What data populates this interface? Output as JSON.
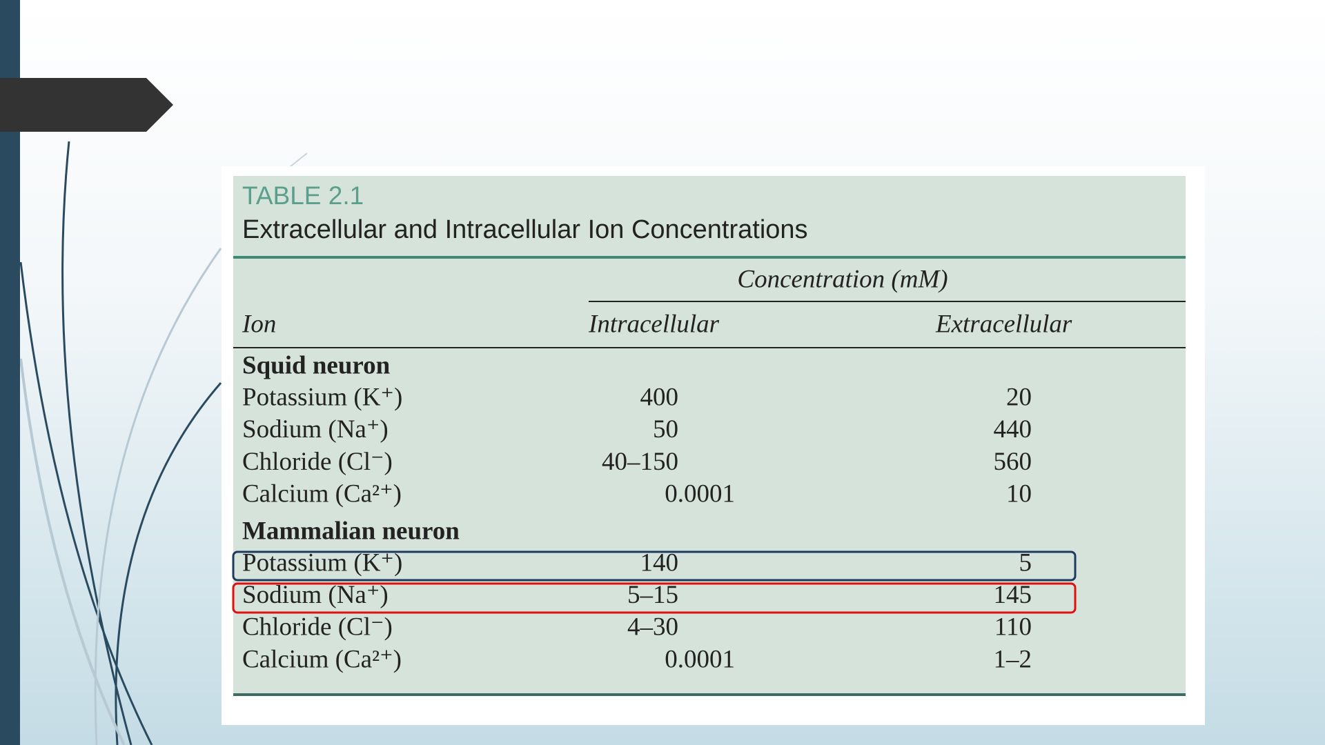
{
  "table": {
    "label": "TABLE 2.1",
    "title": "Extracellular and Intracellular Ion Concentrations",
    "span_header": "Concentration (mM)",
    "columns": [
      "Ion",
      "Intracellular",
      "Extracellular"
    ],
    "groups": [
      {
        "name": "Squid neuron",
        "rows": [
          [
            "Potassium (K⁺)",
            400,
            20
          ],
          [
            "Sodium (Na⁺)",
            50,
            440
          ],
          [
            "Chloride (Cl⁻)",
            "40–150",
            560
          ],
          [
            "Calcium (Ca²⁺)",
            0.0001,
            10
          ]
        ]
      },
      {
        "name": "Mammalian neuron",
        "rows": [
          [
            "Potassium (K⁺)",
            140,
            5
          ],
          [
            "Sodium (Na⁺)",
            "5–15",
            145
          ],
          [
            "Chloride (Cl⁻)",
            "4–30",
            110
          ],
          [
            "Calcium (Ca²⁺)",
            0.0001,
            "1–2"
          ]
        ]
      }
    ]
  }
}
